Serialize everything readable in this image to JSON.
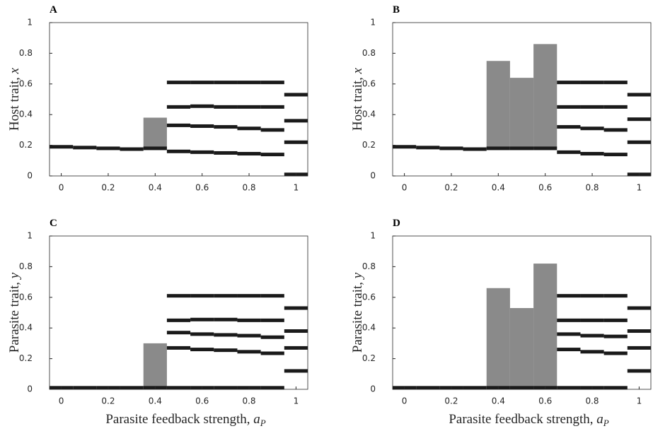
{
  "chart_data": [
    {
      "type": "branches",
      "title": "A",
      "ylabel": "Host trait, ",
      "ylabel_var": "x",
      "x": [
        0,
        0.1,
        0.2,
        0.3,
        0.4,
        0.5,
        0.6,
        0.7,
        0.8,
        0.9,
        1
      ],
      "branches": [
        [
          0.19
        ],
        [
          0.185
        ],
        [
          0.18
        ],
        [
          0.175
        ],
        [
          0.18
        ],
        [
          0.61,
          0.45,
          0.33,
          0.16
        ],
        [
          0.61,
          0.455,
          0.325,
          0.155
        ],
        [
          0.61,
          0.45,
          0.32,
          0.15
        ],
        [
          0.61,
          0.45,
          0.31,
          0.145
        ],
        [
          0.61,
          0.45,
          0.3,
          0.14
        ],
        [
          0.53,
          0.36,
          0.22,
          0.01
        ]
      ],
      "spread": [
        null,
        null,
        null,
        null,
        [
          0.18,
          0.38
        ],
        null,
        null,
        null,
        null,
        null,
        null
      ],
      "xlim": [
        -0.05,
        1.05
      ],
      "ylim": [
        0,
        1
      ],
      "xticks": [
        0,
        0.2,
        0.4,
        0.6,
        0.8,
        1
      ],
      "yticks": [
        0,
        0.2,
        0.4,
        0.6,
        0.8,
        1
      ],
      "color": "#1a1a1a",
      "spread_color": "#8a8a8a"
    },
    {
      "type": "branches",
      "title": "B",
      "ylabel": "Host trait, ",
      "ylabel_var": "x",
      "x": [
        0,
        0.1,
        0.2,
        0.3,
        0.4,
        0.5,
        0.6,
        0.7,
        0.8,
        0.9,
        1
      ],
      "branches": [
        [
          0.19
        ],
        [
          0.185
        ],
        [
          0.18
        ],
        [
          0.175
        ],
        [
          0.18
        ],
        [
          0.18
        ],
        [
          0.18
        ],
        [
          0.61,
          0.45,
          0.32,
          0.155
        ],
        [
          0.61,
          0.45,
          0.31,
          0.145
        ],
        [
          0.61,
          0.45,
          0.3,
          0.14
        ],
        [
          0.53,
          0.37,
          0.22,
          0.01
        ]
      ],
      "spread": [
        null,
        null,
        null,
        null,
        [
          0.18,
          0.75
        ],
        [
          0.18,
          0.64
        ],
        [
          0.18,
          0.86
        ],
        null,
        null,
        null,
        null
      ],
      "xlim": [
        -0.05,
        1.05
      ],
      "ylim": [
        0,
        1
      ],
      "xticks": [
        0,
        0.2,
        0.4,
        0.6,
        0.8,
        1
      ],
      "yticks": [
        0,
        0.2,
        0.4,
        0.6,
        0.8,
        1
      ],
      "color": "#1a1a1a",
      "spread_color": "#8a8a8a"
    },
    {
      "type": "branches",
      "title": "C",
      "ylabel": "Parasite trait, ",
      "ylabel_var": "y",
      "xlabel": "Parasite feedback strength, ",
      "xlabel_var": "a",
      "xlabel_sub": "P",
      "x": [
        0,
        0.1,
        0.2,
        0.3,
        0.4,
        0.5,
        0.6,
        0.7,
        0.8,
        0.9,
        1
      ],
      "branches": [
        [
          0.01
        ],
        [
          0.01
        ],
        [
          0.01
        ],
        [
          0.01
        ],
        [
          0.01
        ],
        [
          0.61,
          0.45,
          0.37,
          0.27,
          0.01
        ],
        [
          0.61,
          0.455,
          0.36,
          0.26,
          0.01
        ],
        [
          0.61,
          0.455,
          0.355,
          0.255,
          0.01
        ],
        [
          0.61,
          0.45,
          0.35,
          0.245,
          0.01
        ],
        [
          0.61,
          0.45,
          0.34,
          0.235,
          0.01
        ],
        [
          0.53,
          0.38,
          0.27,
          0.12
        ]
      ],
      "spread": [
        null,
        null,
        null,
        null,
        [
          0.01,
          0.3
        ],
        null,
        null,
        null,
        null,
        null,
        null
      ],
      "xlim": [
        -0.05,
        1.05
      ],
      "ylim": [
        0,
        1
      ],
      "xticks": [
        0,
        0.2,
        0.4,
        0.6,
        0.8,
        1
      ],
      "yticks": [
        0,
        0.2,
        0.4,
        0.6,
        0.8,
        1
      ],
      "color": "#1a1a1a",
      "spread_color": "#8a8a8a"
    },
    {
      "type": "branches",
      "title": "D",
      "ylabel": "Parasite trait, ",
      "ylabel_var": "y",
      "xlabel": "Parasite feedback strength, ",
      "xlabel_var": "a",
      "xlabel_sub": "P",
      "x": [
        0,
        0.1,
        0.2,
        0.3,
        0.4,
        0.5,
        0.6,
        0.7,
        0.8,
        0.9,
        1
      ],
      "branches": [
        [
          0.01
        ],
        [
          0.01
        ],
        [
          0.01
        ],
        [
          0.01
        ],
        [
          0.01
        ],
        [
          0.01
        ],
        [
          0.01
        ],
        [
          0.61,
          0.45,
          0.36,
          0.26,
          0.01
        ],
        [
          0.61,
          0.45,
          0.35,
          0.245,
          0.01
        ],
        [
          0.61,
          0.45,
          0.345,
          0.235,
          0.01
        ],
        [
          0.53,
          0.38,
          0.27,
          0.12
        ]
      ],
      "spread": [
        null,
        null,
        null,
        null,
        [
          0.01,
          0.66
        ],
        [
          0.01,
          0.53
        ],
        [
          0.01,
          0.82
        ],
        null,
        null,
        null,
        null
      ],
      "xlim": [
        -0.05,
        1.05
      ],
      "ylim": [
        0,
        1
      ],
      "xticks": [
        0,
        0.2,
        0.4,
        0.6,
        0.8,
        1
      ],
      "yticks": [
        0,
        0.2,
        0.4,
        0.6,
        0.8,
        1
      ],
      "color": "#1a1a1a",
      "spread_color": "#8a8a8a"
    }
  ]
}
